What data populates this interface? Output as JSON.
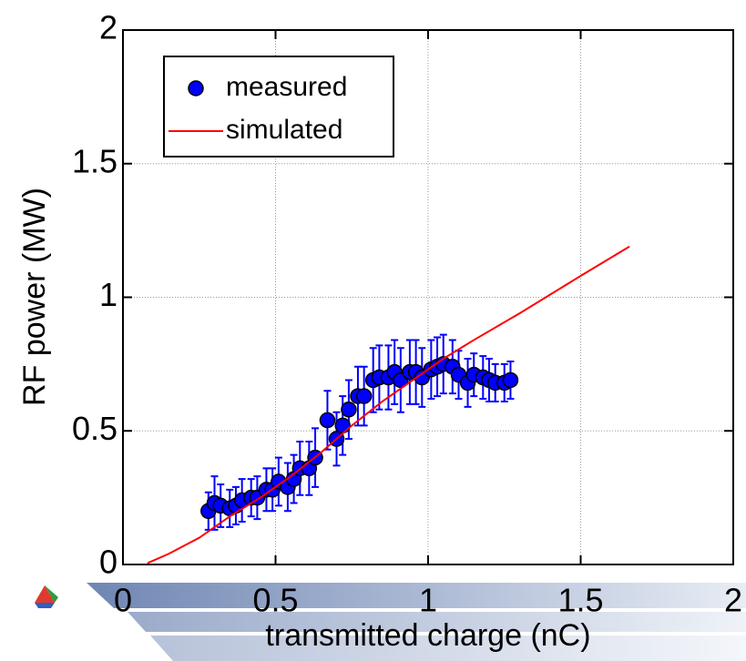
{
  "chart_data": {
    "type": "scatter",
    "x_label": "transmitted charge (nC)",
    "y_label": "RF power (MW)",
    "xlim": [
      0,
      2
    ],
    "ylim": [
      0,
      2
    ],
    "xticks": [
      0,
      0.5,
      1,
      1.5,
      2
    ],
    "yticks": [
      0,
      0.5,
      1,
      1.5,
      2
    ],
    "grid": true,
    "legend": "upper-left",
    "series": [
      {
        "name": "measured",
        "color": "#0000ff",
        "style": "markers",
        "x": [
          0.28,
          0.3,
          0.32,
          0.35,
          0.37,
          0.39,
          0.42,
          0.44,
          0.47,
          0.49,
          0.51,
          0.54,
          0.56,
          0.58,
          0.61,
          0.63,
          0.67,
          0.7,
          0.72,
          0.74,
          0.77,
          0.79,
          0.82,
          0.84,
          0.87,
          0.89,
          0.91,
          0.94,
          0.96,
          0.98,
          1.01,
          1.03,
          1.05,
          1.08,
          1.1,
          1.13,
          1.15,
          1.18,
          1.2,
          1.22,
          1.25,
          1.27
        ],
        "values": [
          0.2,
          0.23,
          0.22,
          0.21,
          0.22,
          0.24,
          0.25,
          0.25,
          0.28,
          0.28,
          0.31,
          0.29,
          0.32,
          0.36,
          0.36,
          0.4,
          0.54,
          0.47,
          0.52,
          0.58,
          0.63,
          0.63,
          0.69,
          0.7,
          0.7,
          0.72,
          0.69,
          0.72,
          0.72,
          0.7,
          0.73,
          0.74,
          0.75,
          0.74,
          0.71,
          0.68,
          0.71,
          0.7,
          0.69,
          0.68,
          0.68,
          0.69
        ],
        "errors": [
          0.07,
          0.1,
          0.08,
          0.07,
          0.07,
          0.08,
          0.07,
          0.08,
          0.08,
          0.08,
          0.09,
          0.09,
          0.09,
          0.1,
          0.1,
          0.11,
          0.11,
          0.1,
          0.11,
          0.11,
          0.11,
          0.11,
          0.12,
          0.12,
          0.12,
          0.12,
          0.12,
          0.12,
          0.12,
          0.11,
          0.11,
          0.11,
          0.11,
          0.1,
          0.09,
          0.09,
          0.08,
          0.08,
          0.08,
          0.07,
          0.07,
          0.07
        ]
      },
      {
        "name": "simulated",
        "color": "#ff0000",
        "style": "line",
        "x": [
          0.08,
          0.15,
          0.25,
          0.35,
          0.45,
          0.55,
          0.65,
          0.75,
          0.85,
          0.95,
          1.05,
          1.15,
          1.3,
          1.5,
          1.66
        ],
        "values": [
          0.005,
          0.04,
          0.1,
          0.18,
          0.25,
          0.33,
          0.42,
          0.52,
          0.61,
          0.69,
          0.77,
          0.84,
          0.94,
          1.08,
          1.19
        ]
      }
    ]
  }
}
